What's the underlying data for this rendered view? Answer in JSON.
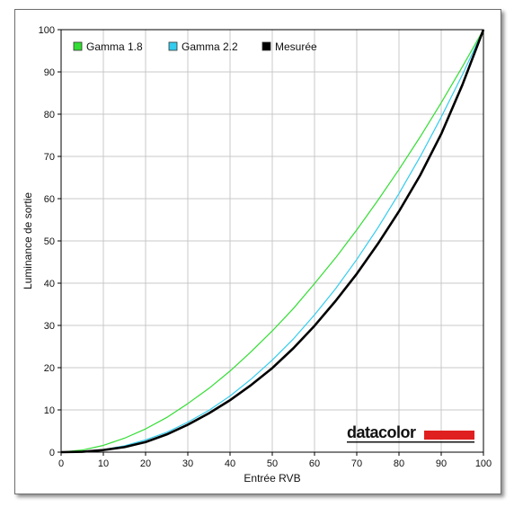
{
  "chart_data": {
    "type": "line",
    "xlabel": "Entrée RVB",
    "ylabel": "Luminance de sortie",
    "xlim": [
      0,
      100
    ],
    "ylim": [
      0,
      100
    ],
    "xticks": [
      "0",
      "10",
      "20",
      "30",
      "40",
      "50",
      "60",
      "70",
      "80",
      "90",
      "100"
    ],
    "yticks": [
      "0",
      "10",
      "20",
      "30",
      "40",
      "50",
      "60",
      "70",
      "80",
      "90",
      "100"
    ],
    "grid": true,
    "legend_position": "top-left",
    "x": [
      0,
      5,
      10,
      15,
      20,
      25,
      30,
      35,
      40,
      45,
      50,
      55,
      60,
      65,
      70,
      75,
      80,
      85,
      90,
      95,
      100
    ],
    "series": [
      {
        "name": "Gamma 1.8",
        "color": "#33dd33",
        "values": [
          0,
          0.5,
          1.6,
          3.3,
          5.5,
          8.2,
          11.5,
          15.1,
          19.2,
          23.8,
          28.7,
          34.0,
          39.9,
          46.0,
          52.6,
          59.6,
          66.9,
          74.6,
          82.7,
          91.2,
          100
        ]
      },
      {
        "name": "Gamma 2.2",
        "color": "#33ccee",
        "values": [
          0,
          0.1,
          0.6,
          1.5,
          2.9,
          4.7,
          7.1,
          9.9,
          13.3,
          17.3,
          21.8,
          26.8,
          32.5,
          38.7,
          45.6,
          53.1,
          61.2,
          69.9,
          79.3,
          89.3,
          100
        ]
      },
      {
        "name": "Mesurée",
        "color": "#000000",
        "values": [
          0,
          0.1,
          0.5,
          1.2,
          2.4,
          4.2,
          6.5,
          9.2,
          12.3,
          15.9,
          19.9,
          24.6,
          29.9,
          35.8,
          42.2,
          49.3,
          57.0,
          65.5,
          75.3,
          86.9,
          100
        ]
      }
    ]
  },
  "logo": {
    "text": "datacolor",
    "bar_color": "#e02020"
  }
}
